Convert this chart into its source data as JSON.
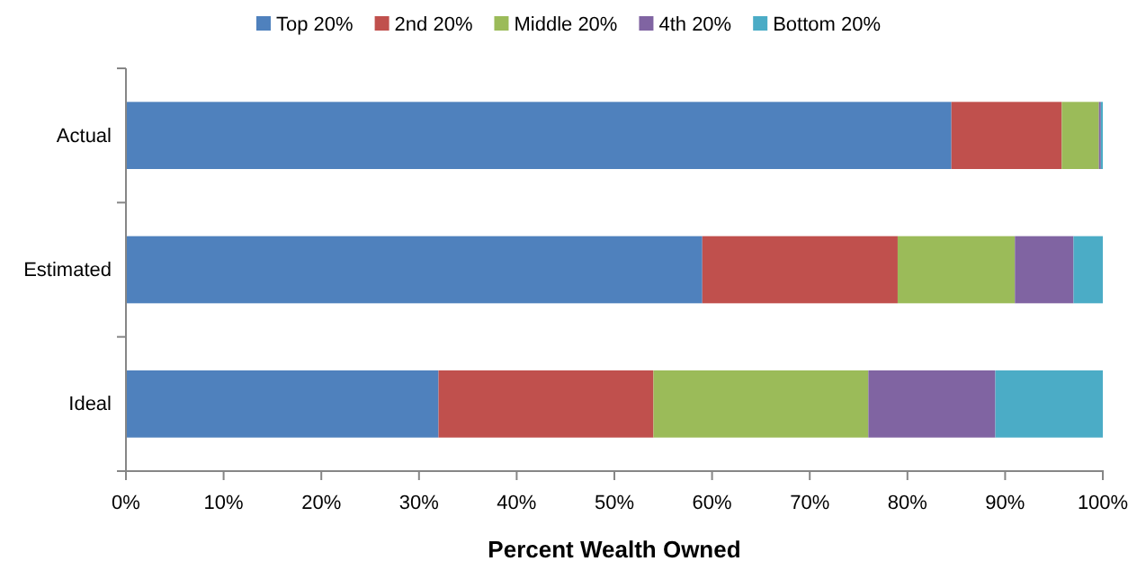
{
  "chart_data": {
    "type": "bar",
    "orientation": "horizontal",
    "stacked": true,
    "xlabel": "Percent Wealth Owned",
    "categories": [
      "Actual",
      "Estimated",
      "Ideal"
    ],
    "series": [
      {
        "name": "Top 20%",
        "color": "#4f81bd",
        "values": [
          84.5,
          59,
          32
        ]
      },
      {
        "name": "2nd 20%",
        "color": "#c0504d",
        "values": [
          11.3,
          20,
          22
        ]
      },
      {
        "name": "Middle 20%",
        "color": "#9bbb59",
        "values": [
          3.8,
          12,
          22
        ]
      },
      {
        "name": "4th 20%",
        "color": "#8064a2",
        "values": [
          0.2,
          6,
          13
        ]
      },
      {
        "name": "Bottom 20%",
        "color": "#4bacc6",
        "values": [
          0.2,
          3,
          11
        ]
      }
    ],
    "xlim": [
      0,
      100
    ],
    "xticks": [
      {
        "value": 0,
        "label": "0%"
      },
      {
        "value": 10,
        "label": "10%"
      },
      {
        "value": 20,
        "label": "20%"
      },
      {
        "value": 30,
        "label": "30%"
      },
      {
        "value": 40,
        "label": "40%"
      },
      {
        "value": 50,
        "label": "50%"
      },
      {
        "value": 60,
        "label": "60%"
      },
      {
        "value": 70,
        "label": "70%"
      },
      {
        "value": 80,
        "label": "80%"
      },
      {
        "value": 90,
        "label": "90%"
      },
      {
        "value": 100,
        "label": "100%"
      }
    ],
    "legend": "top",
    "grid": false
  }
}
